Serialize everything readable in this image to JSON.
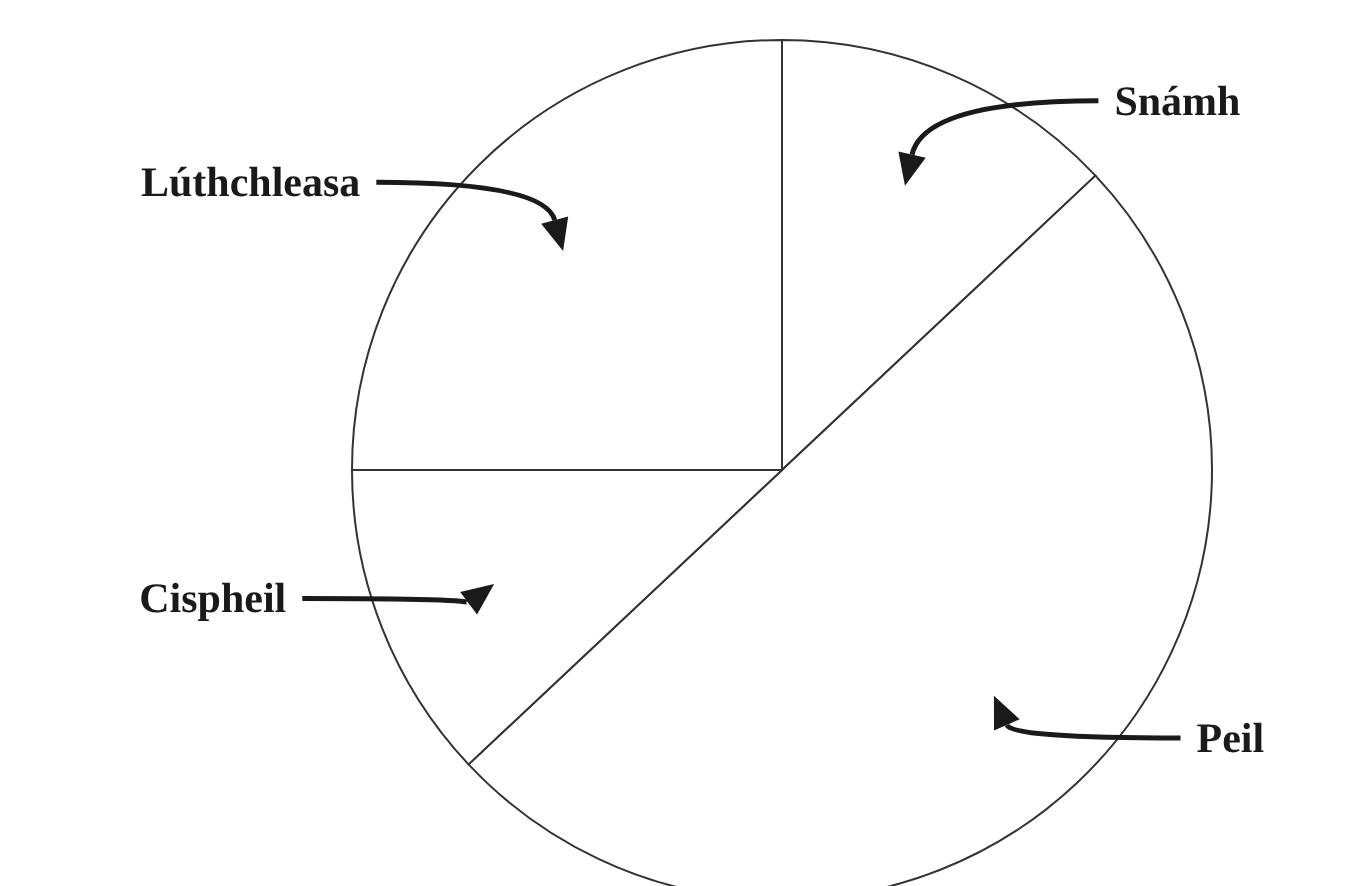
{
  "chart_data": {
    "type": "pie",
    "categories": [
      "Snámh",
      "Peil",
      "Cispheil",
      "Lúthchleasa"
    ],
    "values": [
      13,
      50,
      12,
      25
    ],
    "colors": [
      "#ffffff",
      "#ffffff",
      "#ffffff",
      "#ffffff"
    ]
  }
}
